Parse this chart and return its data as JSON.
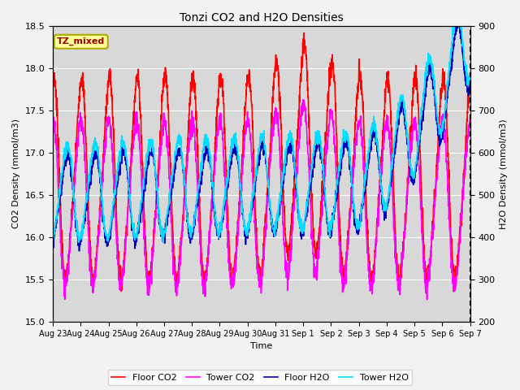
{
  "title": "Tonzi CO2 and H2O Densities",
  "xlabel": "Time",
  "ylabel_left": "CO2 Density (mmol/m3)",
  "ylabel_right": "H2O Density (mmol/m3)",
  "ylim_left": [
    15.0,
    18.5
  ],
  "ylim_right": [
    200,
    900
  ],
  "yticks_left": [
    15.0,
    15.5,
    16.0,
    16.5,
    17.0,
    17.5,
    18.0,
    18.5
  ],
  "yticks_right": [
    200,
    300,
    400,
    500,
    600,
    700,
    800,
    900
  ],
  "xtick_labels": [
    "Aug 23",
    "Aug 24",
    "Aug 25",
    "Aug 26",
    "Aug 27",
    "Aug 28",
    "Aug 29",
    "Aug 30",
    "Aug 31",
    "Sep 1",
    "Sep 2",
    "Sep 3",
    "Sep 4",
    "Sep 5",
    "Sep 6",
    "Sep 7"
  ],
  "annotation_text": "TZ_mixed",
  "annotation_bg": "#FFFF99",
  "annotation_border": "#AAAA00",
  "annotation_text_color": "#990000",
  "line_colors": {
    "floor_co2": "#FF0000",
    "tower_co2": "#FF00FF",
    "floor_h2o": "#0000BB",
    "tower_h2o": "#00DDFF"
  },
  "line_widths": {
    "floor_co2": 1.2,
    "tower_co2": 1.2,
    "floor_h2o": 1.2,
    "tower_h2o": 1.2
  },
  "legend_labels": [
    "Floor CO2",
    "Tower CO2",
    "Floor H2O",
    "Tower H2O"
  ],
  "grid_color": "#FFFFFF",
  "plot_bg": "#D8D8D8",
  "fig_bg": "#F2F2F2"
}
